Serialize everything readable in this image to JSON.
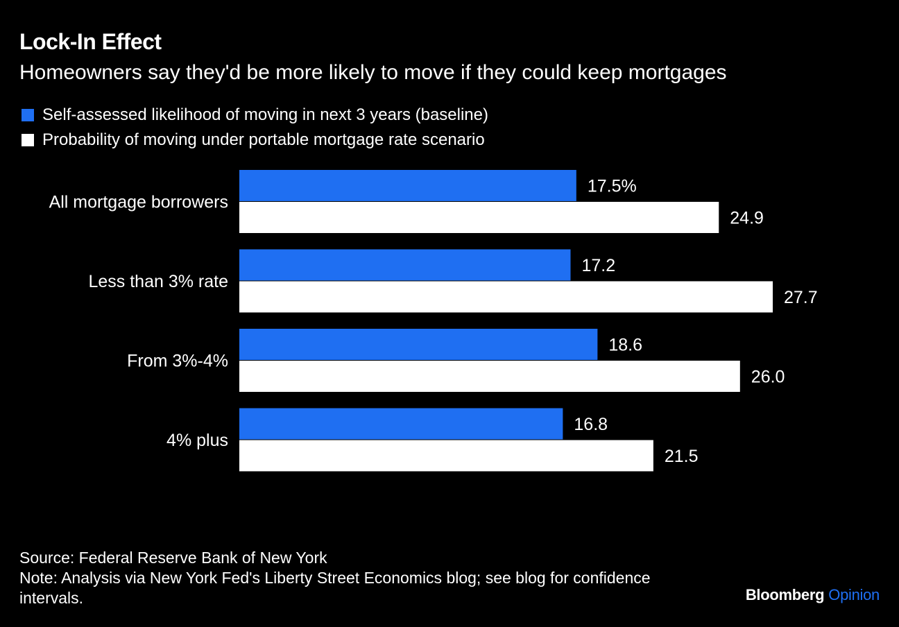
{
  "header": {
    "title": "Lock-In Effect",
    "subtitle": "Homeowners say they'd be more likely to move if they could keep mortgages"
  },
  "legend": [
    {
      "label": "Self-assessed likelihood of moving in next 3 years (baseline)",
      "color": "#1f6ff2"
    },
    {
      "label": "Probability of moving under portable mortgage rate scenario",
      "color": "#ffffff"
    }
  ],
  "chart_data": {
    "type": "bar",
    "orientation": "horizontal",
    "categories": [
      "All mortgage borrowers",
      "Less than 3% rate",
      "From 3%-4%",
      "4% plus"
    ],
    "series": [
      {
        "name": "Self-assessed likelihood of moving in next 3 years (baseline)",
        "values": [
          17.5,
          17.2,
          18.6,
          16.8
        ],
        "labels": [
          "17.5%",
          "17.2",
          "18.6",
          "16.8"
        ],
        "color": "#1f6ff2"
      },
      {
        "name": "Probability of moving under portable mortgage rate scenario",
        "values": [
          24.9,
          27.7,
          26.0,
          21.5
        ],
        "labels": [
          "24.9",
          "27.7",
          "26.0",
          "21.5"
        ],
        "color": "#ffffff"
      }
    ],
    "xlim": [
      0,
      27.7
    ],
    "grid": false,
    "legend_position": "top-left"
  },
  "footer": {
    "source": "Source: Federal Reserve Bank of New York",
    "note": "Note: Analysis via New York Fed's Liberty Street Economics blog; see blog for confidence intervals."
  },
  "brand": {
    "name": "Bloomberg",
    "suffix": "Opinion",
    "suffix_color": "#1f6ff2"
  }
}
